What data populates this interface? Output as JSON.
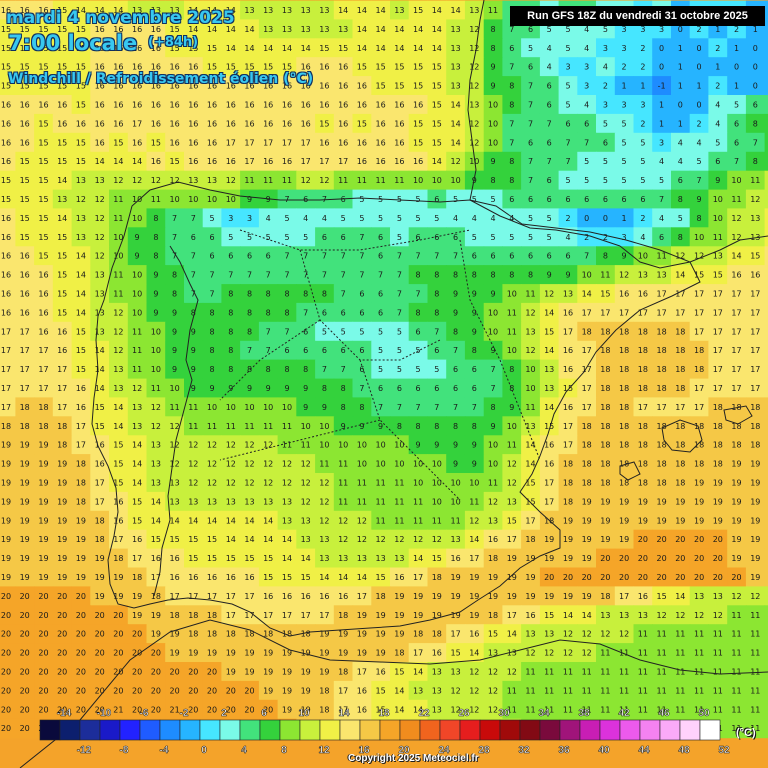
{
  "title": {
    "date": "mardi 4 novembre 2025",
    "time": "7:00 locale",
    "lead": "(+84h)",
    "parameter": "Windchill / Refroidissement éolien (°C)"
  },
  "run_info": "Run GFS 18Z du vendredi 31 octobre 2025",
  "copyright": "Copyright 2025 Meteociel.fr",
  "legend": {
    "unit": "(°C)",
    "values": [
      -14,
      -12,
      -10,
      -8,
      -6,
      -4,
      -2,
      0,
      2,
      4,
      6,
      8,
      10,
      12,
      14,
      16,
      18,
      20,
      22,
      24,
      26,
      28,
      30,
      32,
      34,
      36,
      38,
      40,
      42,
      44,
      46,
      48,
      50,
      52
    ],
    "colors": [
      "#0a0a3c",
      "#0c1f6e",
      "#1c2d9a",
      "#1a1ac8",
      "#2222ff",
      "#1f5cff",
      "#1e8cff",
      "#26b4ff",
      "#46e6ff",
      "#7afae8",
      "#42e27c",
      "#34d23c",
      "#8ce632",
      "#c8f03c",
      "#f0f046",
      "#fae66e",
      "#f5c846",
      "#f5a528",
      "#f08c1e",
      "#f0641e",
      "#f04628",
      "#e61e1e",
      "#c80a0a",
      "#a00a0a",
      "#820a14",
      "#7a0a3c",
      "#a0147a",
      "#c81eb4",
      "#dc32dc",
      "#ec5aec",
      "#f482f0",
      "#faaaf8",
      "#ffd2fc",
      "#ffffff"
    ]
  },
  "colors": {
    "sea_orange": "#f4a32a",
    "warm_orange": "#f08c1e",
    "yellow": "#f7e04a",
    "pale_yellow": "#f5ef6e",
    "lime": "#b8ec3c",
    "green": "#4fe060",
    "cyan": "#50e0f0",
    "border_line": "#222222"
  },
  "grid": {
    "rows": [
      "16 16 16 15 14 14 14 13 13 13 14 14 14 13 13 13 13 13 14 14 14 13 15 14 14 13 11 7 6 5 6 6 5 4 3 4 1 2 2 2 1 0",
      "15 15 15 15 15 16 16 16 16 15 14 14 14 14 13 13 13 13 13 14 14 14 14 14 13 12 8 7 6 5 5 4 5 3 3 3 0 2 1 2 1 0",
      "15 15 15 15 15 16 16 16 16 15 15 15 14 14 14 14 14 15 15 14 14 14 14 14 13 12 8 6 5 4 5 4 3 3 2 0 1 0 2 1 0 0",
      "15 15 15 15 15 16 16 16 16 16 16 15 15 15 15 15 16 16 16 15 15 15 15 15 13 12 9 7 6 4 3 3 4 2 2 0 1 0 1 0 0 0",
      "15 15 15 15 15 16 16 16 16 16 16 16 16 16 16 16 16 16 16 16 15 15 15 15 13 12 9 8 7 6 5 3 2 1 1 -1 1 1 2 1 0 0",
      "16 16 16 16 15 16 16 16 16 16 16 16 16 16 16 16 16 16 16 16 16 16 16 15 14 13 10 8 7 6 5 4 3 3 3 1 0 0 4 5 6 7",
      "16 16 15 16 16 16 16 17 16 16 16 16 16 16 16 16 16 15 16 15 16 16 15 15 14 12 10 7 7 7 6 6 5 5 2 1 1 2 4 6 8 9",
      "16 16 15 15 15 16 15 16 15 16 16 16 17 17 17 17 17 16 16 16 16 16 15 15 14 12 10 7 6 6 7 7 6 5 5 3 4 4 5 6 7 8",
      "16 15 15 15 15 14 14 14 16 15 16 16 16 17 16 16 17 17 17 16 16 16 16 14 12 10 9 8 7 7 7 5 5 5 5 4 4 5 6 7 8 9",
      "15 15 15 14 13 13 12 12 12 12 13 13 12 11 11 11 12 12 11 11 11 11 10 10 10 9 8 8 7 6 5 5 5 5 5 5 6 7 9 10 11 12",
      "15 15 15 13 12 12 11 10 11 10 10 10 10 9 9 7 6 7 6 5 5 5 5 6 5 5 5 6 6 6 6 6 6 6 6 7 8 9 10 11 12 13",
      "16 15 15 14 13 12 11 10 8 7 7 5 3 3 4 5 4 4 5 5 5 5 5 5 4 4 4 4 5 5 2 0 0 1 2 4 5 8 10 12 13 14",
      "16 15 15 15 13 12 10 9 8 7 6 6 5 5 5 5 5 6 6 7 6 5 6 6 6 5 5 5 5 5 4 2 2 3 4 6 8 10 11 12 13 14",
      "16 16 15 15 14 12 10 9 8 7 7 6 6 6 6 7 7 7 7 7 6 7 7 7 7 6 6 6 6 6 6 7 8 9 10 11 12 12 13 14 15 16",
      "16 16 16 15 14 13 11 10 9 8 7 7 7 7 7 7 7 7 7 7 7 7 8 8 8 8 8 8 8 9 9 10 11 12 13 13 14 15 15 16 16 17",
      "16 16 16 15 14 13 11 10 9 8 7 7 8 8 8 8 8 8 7 6 6 7 7 8 9 9 9 10 11 12 13 14 15 16 16 17 17 17 17 17 17 17",
      "16 16 16 15 14 13 12 10 9 9 8 8 8 8 8 8 7 6 6 6 6 7 8 8 9 9 10 11 12 14 16 17 17 17 17 17 17 17 17 17 17 17",
      "17 17 16 16 15 13 12 11 10 9 9 8 8 8 7 7 6 5 5 5 5 5 6 7 8 9 10 11 13 15 17 18 18 18 18 18 18 17 17 17 17 17",
      "17 17 17 16 15 14 12 11 10 9 9 8 8 7 7 6 6 6 6 6 5 5 5 6 7 8 9 10 12 14 16 17 18 18 18 18 18 18 17 17 17 17",
      "17 17 17 17 15 14 13 11 10 9 9 8 8 8 8 8 8 7 7 6 5 5 5 5 6 6 7 8 10 13 16 17 18 18 18 18 18 18 17 17 17 17",
      "17 17 17 17 16 14 13 12 11 10 9 9 9 9 9 9 9 8 8 7 6 6 6 6 6 6 7 8 10 13 15 17 18 18 18 18 18 17 17 17 17 17",
      "17 18 18 17 16 15 14 13 12 11 11 10 10 10 10 10 9 9 8 8 7 7 7 7 7 7 8 9 11 14 16 17 18 18 17 17 17 17 18 18 18 18",
      "18 18 18 18 17 15 14 13 12 12 11 11 11 11 11 11 10 10 9 9 9 8 8 8 8 8 9 10 13 15 17 18 18 18 18 18 18 18 18 18 18 18",
      "19 19 19 18 17 16 15 14 13 12 12 12 12 12 12 11 11 10 10 10 10 10 9 9 9 9 10 11 14 16 17 18 18 18 18 18 18 18 18 18 18 19",
      "19 19 19 19 18 16 15 14 13 12 12 12 12 12 12 12 12 11 11 10 10 10 10 10 9 9 10 12 14 16 18 18 18 18 18 18 18 18 18 19 19 19",
      "19 19 19 19 18 17 15 14 13 13 12 12 12 12 12 12 12 12 11 11 11 11 10 10 10 10 11 12 15 17 18 18 18 18 18 18 18 19 19 19 19 19",
      "19 19 19 19 18 17 16 15 14 13 13 13 13 13 13 13 12 12 11 11 11 11 11 10 10 11 12 13 15 17 18 19 19 19 19 19 19 19 19 19 19 19",
      "19 19 19 19 19 18 16 15 14 14 14 14 14 14 14 13 13 12 12 12 11 11 11 11 11 12 13 15 17 18 19 19 19 19 19 19 19 19 19 19 19 19",
      "19 19 19 19 19 18 17 16 15 15 15 15 14 14 14 14 13 13 12 12 12 12 12 12 13 14 16 17 18 19 19 19 19 19 20 20 20 20 20 19 19 19",
      "19 19 19 19 19 19 18 17 16 16 15 15 15 15 15 14 14 13 13 13 13 13 14 15 16 17 18 19 19 19 19 19 20 20 20 20 20 20 20 19 19 19",
      "19 19 19 19 19 19 19 18 17 16 16 16 16 16 15 15 15 14 14 14 15 16 17 18 19 19 19 19 19 20 20 20 20 20 20 20 20 20 20 20 19 19",
      "20 20 20 20 20 19 19 19 18 17 17 17 17 17 16 16 16 16 16 17 18 19 19 19 19 19 19 19 19 19 19 19 18 17 16 15 14 13 13 12 12 12",
      "20 20 20 20 20 20 20 19 19 18 18 18 17 17 17 17 17 17 18 19 19 19 19 19 19 19 18 17 16 15 14 14 13 13 13 12 12 12 12 11 11 11",
      "20 20 20 20 20 20 20 20 19 19 18 18 18 18 18 18 18 19 19 19 19 19 18 18 17 16 15 14 13 13 12 12 12 12 11 11 11 11 11 11 11 11",
      "20 20 20 20 20 20 20 20 20 19 19 19 19 19 19 19 19 19 19 19 19 18 17 16 15 14 13 13 12 12 12 12 11 11 11 11 11 11 11 11 11 11",
      "20 20 20 20 20 20 20 20 20 20 20 20 19 19 19 19 19 19 18 17 16 15 14 13 13 12 12 12 11 11 11 11 11 11 11 11 11 11 11 11 11 11",
      "20 20 20 20 20 20 20 20 20 20 20 20 20 20 19 19 19 18 17 16 15 14 13 13 12 12 12 11 11 11 11 11 11 11 11 11 11 11 11 11 11 11",
      "20 20 20 20 20 20 21 20 20 21 20 20 20 20 20 19 19 18 17 16 15 14 14 13 12 12 12 11 11 11 11 11 11 11 11 11 11 11 11 11 11 11",
      "20 20 20 20 20 20 21 21 20 21 21 20 20 20 20 20 19 18 17 16 15 14 14 13 12 12 12 12 11 11 11 11 11 11 11 11 11 11 11 11 11 11"
    ]
  },
  "places": {
    "bay_of_biscay": "",
    "mediterranean": ""
  }
}
